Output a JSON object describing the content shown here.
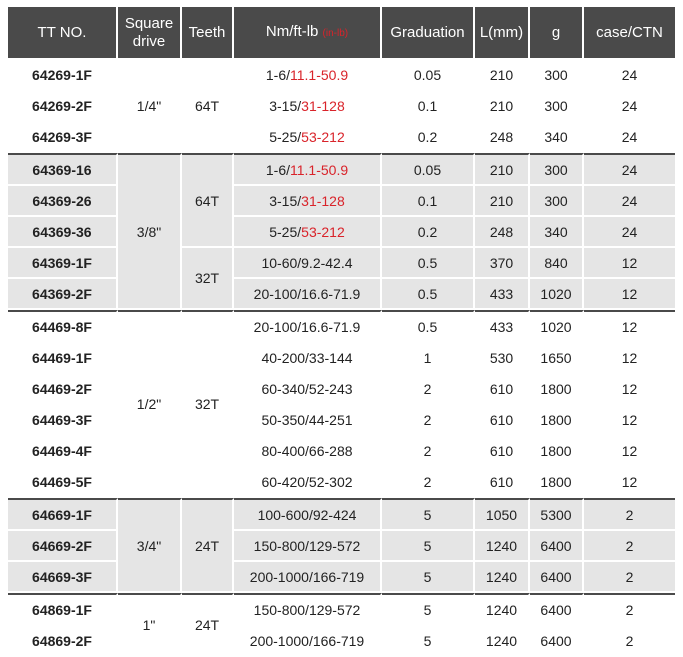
{
  "headers": {
    "tt_no": "TT NO.",
    "square_drive": "Square drive",
    "teeth": "Teeth",
    "range_prefix": "Nm/ft-lb ",
    "range_suffix": "(in-lb)",
    "graduation": "Graduation",
    "length": "L(mm)",
    "weight": "g",
    "case": "case/CTN"
  },
  "groups": [
    {
      "drive": "1/4\"",
      "rows": [
        {
          "tt": "64269-1F",
          "teeth": "64T",
          "range_black": "1-6/",
          "range_red": "11.1-50.9",
          "grad": "0.05",
          "len": "210",
          "g": "300",
          "ctn": "24"
        },
        {
          "tt": "64269-2F",
          "range_black": "3-15/",
          "range_red": "31-128",
          "grad": "0.1",
          "len": "210",
          "g": "300",
          "ctn": "24"
        },
        {
          "tt": "64269-3F",
          "range_black": "5-25/",
          "range_red": "53-212",
          "grad": "0.2",
          "len": "248",
          "g": "340",
          "ctn": "24"
        }
      ]
    },
    {
      "drive": "3/8\"",
      "rows": [
        {
          "tt": "64369-16",
          "teeth": "64T",
          "range_black": "1-6/",
          "range_red": "11.1-50.9",
          "grad": "0.05",
          "len": "210",
          "g": "300",
          "ctn": "24"
        },
        {
          "tt": "64369-26",
          "range_black": "3-15/",
          "range_red": "31-128",
          "grad": "0.1",
          "len": "210",
          "g": "300",
          "ctn": "24"
        },
        {
          "tt": "64369-36",
          "range_black": "5-25/",
          "range_red": "53-212",
          "grad": "0.2",
          "len": "248",
          "g": "340",
          "ctn": "24"
        },
        {
          "tt": "64369-1F",
          "teeth": "32T",
          "range_black": "10-60/9.2-42.4",
          "range_red": "",
          "grad": "0.5",
          "len": "370",
          "g": "840",
          "ctn": "12"
        },
        {
          "tt": "64369-2F",
          "range_black": "20-100/16.6-71.9",
          "range_red": "",
          "grad": "0.5",
          "len": "433",
          "g": "1020",
          "ctn": "12"
        }
      ]
    },
    {
      "drive": "1/2\"",
      "rows": [
        {
          "tt": "64469-8F",
          "teeth": "32T",
          "range_black": "20-100/16.6-71.9",
          "range_red": "",
          "grad": "0.5",
          "len": "433",
          "g": "1020",
          "ctn": "12"
        },
        {
          "tt": "64469-1F",
          "range_black": "40-200/33-144",
          "range_red": "",
          "grad": "1",
          "len": "530",
          "g": "1650",
          "ctn": "12"
        },
        {
          "tt": "64469-2F",
          "range_black": "60-340/52-243",
          "range_red": "",
          "grad": "2",
          "len": "610",
          "g": "1800",
          "ctn": "12"
        },
        {
          "tt": "64469-3F",
          "range_black": "50-350/44-251",
          "range_red": "",
          "grad": "2",
          "len": "610",
          "g": "1800",
          "ctn": "12"
        },
        {
          "tt": "64469-4F",
          "range_black": "80-400/66-288",
          "range_red": "",
          "grad": "2",
          "len": "610",
          "g": "1800",
          "ctn": "12"
        },
        {
          "tt": "64469-5F",
          "range_black": "60-420/52-302",
          "range_red": "",
          "grad": "2",
          "len": "610",
          "g": "1800",
          "ctn": "12"
        }
      ]
    },
    {
      "drive": "3/4\"",
      "rows": [
        {
          "tt": "64669-1F",
          "teeth": "24T",
          "range_black": "100-600/92-424",
          "range_red": "",
          "grad": "5",
          "len": "1050",
          "g": "5300",
          "ctn": "2"
        },
        {
          "tt": "64669-2F",
          "range_black": "150-800/129-572",
          "range_red": "",
          "grad": "5",
          "len": "1240",
          "g": "6400",
          "ctn": "2"
        },
        {
          "tt": "64669-3F",
          "range_black": "200-1000/166-719",
          "range_red": "",
          "grad": "5",
          "len": "1240",
          "g": "6400",
          "ctn": "2"
        }
      ]
    },
    {
      "drive": "1\"",
      "rows": [
        {
          "tt": "64869-1F",
          "teeth": "24T",
          "range_black": "150-800/129-572",
          "range_red": "",
          "grad": "5",
          "len": "1240",
          "g": "6400",
          "ctn": "2"
        },
        {
          "tt": "64869-2F",
          "range_black": "200-1000/166-719",
          "range_red": "",
          "grad": "5",
          "len": "1240",
          "g": "6400",
          "ctn": "2"
        }
      ]
    }
  ]
}
